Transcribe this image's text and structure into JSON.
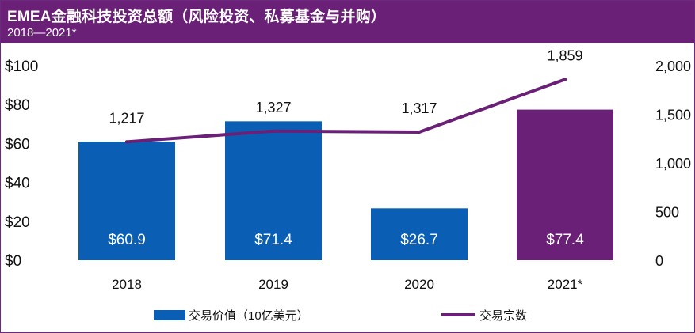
{
  "header": {
    "title": "EMEA金融科技投资总额（风险投资、私募基金与并购）",
    "subtitle": "2018—2021*"
  },
  "chart_data": {
    "type": "bar",
    "categories": [
      "2018",
      "2019",
      "2020",
      "2021*"
    ],
    "series": [
      {
        "name": "交易价值（10亿美元）",
        "type": "bar",
        "axis": "left",
        "values": [
          60.9,
          71.4,
          26.7,
          77.4
        ],
        "labels": [
          "$60.9",
          "$71.4",
          "$26.7",
          "$77.4"
        ],
        "colors": [
          "#0a5fb4",
          "#0a5fb4",
          "#0a5fb4",
          "#6b2077"
        ]
      },
      {
        "name": "交易宗数",
        "type": "line",
        "axis": "right",
        "values": [
          1217,
          1327,
          1317,
          1859
        ],
        "labels": [
          "1,217",
          "1,327",
          "1,317",
          "1,859"
        ],
        "color": "#6b2077"
      }
    ],
    "y_left": {
      "min": 0,
      "max": 100,
      "ticks": [
        "$0",
        "$20",
        "$40",
        "$60",
        "$80",
        "$100"
      ]
    },
    "y_right": {
      "min": 0,
      "max": 2000,
      "ticks": [
        "0",
        "500",
        "1,000",
        "1,500",
        "2,000"
      ]
    },
    "grid": false,
    "legend_position": "bottom"
  }
}
